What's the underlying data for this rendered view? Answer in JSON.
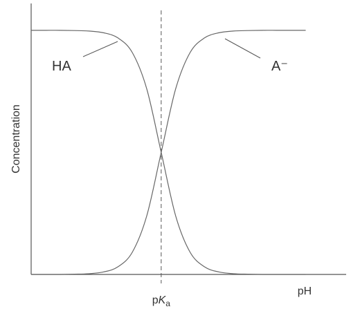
{
  "chart_data": {
    "type": "line",
    "x_label": "pH",
    "y_label": "Concentration",
    "x": [
      -4.5,
      -4,
      -3.5,
      -3,
      -2.5,
      -2,
      -1.5,
      -1,
      -0.5,
      0,
      0.5,
      1,
      1.5,
      2,
      2.5,
      3,
      3.5,
      4,
      4.5,
      5
    ],
    "series": [
      {
        "name": "HA",
        "color": "#666666",
        "values": [
          1,
          1,
          1,
          0.999,
          0.997,
          0.99,
          0.969,
          0.909,
          0.76,
          0.5,
          0.24,
          0.091,
          0.031,
          0.01,
          0.003,
          0.001,
          0,
          0,
          0,
          0
        ]
      },
      {
        "name": "A⁻",
        "color": "#666666",
        "values": [
          0,
          0,
          0,
          0.001,
          0.003,
          0.01,
          0.031,
          0.091,
          0.24,
          0.5,
          0.76,
          0.909,
          0.969,
          0.99,
          0.997,
          0.999,
          1,
          1,
          1,
          1
        ]
      }
    ],
    "marker_line": {
      "x": 0,
      "prefix": "p",
      "symbol": "K",
      "subscript": "a"
    },
    "xlim": [
      -4.5,
      6.4
    ],
    "ylim": [
      0,
      1.11
    ]
  }
}
